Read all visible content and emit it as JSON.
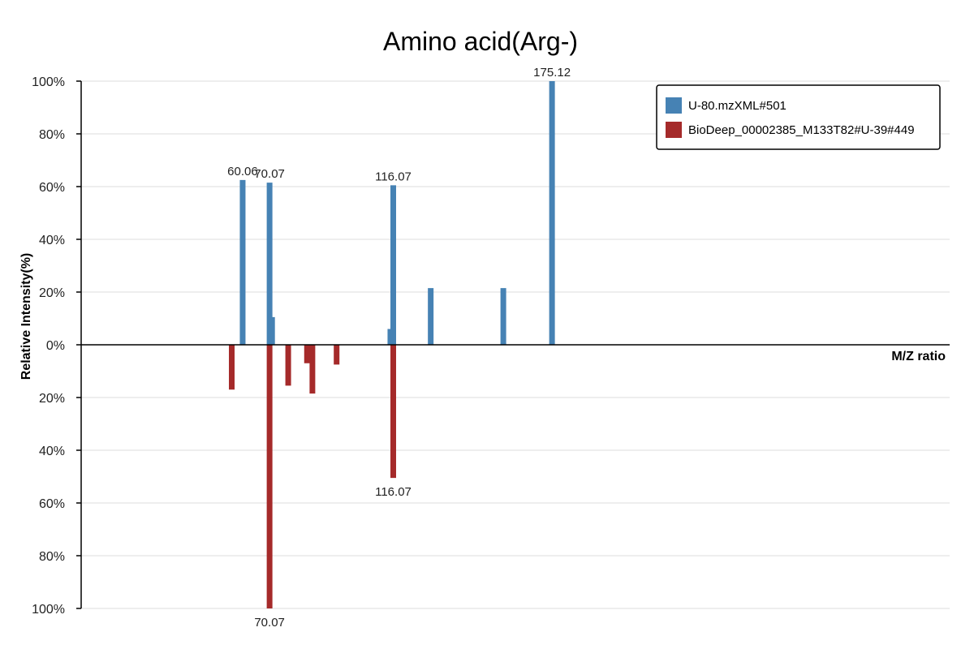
{
  "chart_data": {
    "type": "bar",
    "title": "Amino acid(Arg-)",
    "xlabel": "M/Z ratio",
    "ylabel": "Relative Intensity(%)",
    "ylim": [
      -100,
      100
    ],
    "y_ticks": [
      "100%",
      "80%",
      "60%",
      "40%",
      "20%",
      "0%",
      "20%",
      "40%",
      "60%",
      "80%",
      "100%"
    ],
    "grid": true,
    "legend_position": "top-right",
    "series": [
      {
        "name": "U-80.mzXML#501",
        "color": "#4682b4",
        "direction": "up",
        "x": [
          60.06,
          70.07,
          71.0,
          115.0,
          116.07,
          130.0,
          157.0,
          175.12
        ],
        "values": [
          62.5,
          61.5,
          10.5,
          6.0,
          60.5,
          21.5,
          21.5,
          100
        ],
        "labeled_x": [
          "60.06",
          "70.07",
          "116.07",
          "175.12"
        ]
      },
      {
        "name": "BioDeep_00002385_M133T82#U-39#449",
        "color": "#a52a2a",
        "direction": "down",
        "x": [
          56.0,
          70.07,
          77.0,
          84.0,
          86.0,
          95.0,
          116.07
        ],
        "values": [
          17,
          100,
          15.5,
          7,
          18.5,
          7.5,
          50.5
        ],
        "labeled_x": [
          "70.07",
          "116.07"
        ]
      }
    ]
  }
}
